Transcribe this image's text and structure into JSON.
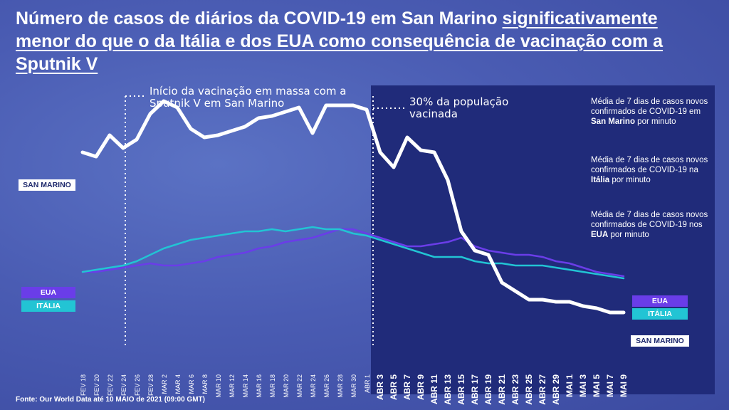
{
  "title": {
    "part1": "Número de casos de diários da COVID-19 em San Marino ",
    "part2": "significativamente menor do que o da Itália e dos EUA como consequência de vacinação com a Sputnik V"
  },
  "annotations": {
    "vaccination_start": "Início da vacinação em massa com a  Sputnik V em San Marino",
    "thirty_percent": "30% da população vacinada"
  },
  "legend": [
    {
      "name": "Média de 7 dias de casos novos confirmados de COVID-19 em ",
      "bold": "San Marino",
      "after": " por minuto",
      "color": "#ffffff"
    },
    {
      "name": "Média de 7 dias de casos novos confirmados de COVID-19 na ",
      "bold": "Itália",
      "after": " por minuto",
      "color": "#22c4d4"
    },
    {
      "name": "Média de 7 dias de casos novos confirmados de COVID-19 nos ",
      "bold": "EUA",
      "after": " por minuto",
      "color": "#6a3de8"
    }
  ],
  "tags": {
    "san_marino_left": "SAN MARINO",
    "eua_left": "EUA",
    "italia_left": "ITÁLIA",
    "eua_right": "EUA",
    "italia_right": "ITÁLIA",
    "san_marino_right": "SAN MARINO"
  },
  "source": "Fonte: Our World Data até 10 MAIO de 2021 (09:00 GMT)",
  "colors": {
    "san_marino": "#ffffff",
    "italia": "#22c4d4",
    "eua": "#6a3de8",
    "highlight_panel": "#202b7a"
  },
  "chart_data": {
    "type": "line",
    "categories": [
      "FEV 18",
      "FEV 20",
      "FEV 22",
      "FEV 24",
      "FEV 26",
      "FEV 28",
      "MAR 2",
      "MAR 4",
      "MAR 6",
      "MAR 8",
      "MAR 10",
      "MAR 12",
      "MAR 14",
      "MAR 16",
      "MAR 18",
      "MAR 20",
      "MAR 22",
      "MAR 24",
      "MAR 26",
      "MAR 28",
      "MAR 30",
      "ABR 1",
      "ABR 3",
      "ABR 5",
      "ABR 7",
      "ABR 9",
      "ABR 11",
      "ABR 13",
      "ABR 15",
      "ABR 17",
      "ABR 19",
      "ABR 21",
      "ABR 23",
      "ABR 25",
      "ABR 27",
      "ABR 29",
      "MAI 1",
      "MAI 3",
      "MAI 5",
      "MAI 7",
      "MAI 9"
    ],
    "series": [
      {
        "name": "SAN MARINO",
        "values": [
          10.2,
          10.0,
          11.0,
          10.4,
          10.8,
          12.0,
          12.6,
          12.3,
          11.3,
          10.9,
          11.0,
          11.2,
          11.4,
          11.8,
          11.9,
          12.1,
          12.3,
          11.1,
          12.4,
          12.4,
          12.4,
          12.2,
          10.2,
          9.5,
          10.9,
          10.3,
          10.2,
          8.9,
          6.5,
          5.6,
          5.4,
          4.1,
          3.7,
          3.3,
          3.3,
          3.2,
          3.2,
          3.0,
          2.9,
          2.7,
          2.7
        ]
      },
      {
        "name": "EUA",
        "values": [
          4.6,
          4.6,
          4.7,
          4.8,
          4.9,
          5.0,
          4.9,
          4.9,
          5.0,
          5.1,
          5.3,
          5.4,
          5.5,
          5.7,
          5.8,
          6.0,
          6.1,
          6.2,
          6.4,
          6.6,
          6.6,
          6.4,
          6.2,
          6.0,
          5.8,
          5.8,
          5.9,
          6.0,
          6.2,
          5.8,
          5.6,
          5.5,
          5.4,
          5.4,
          5.3,
          5.1,
          5.0,
          4.8,
          4.6,
          4.5,
          4.4
        ]
      },
      {
        "name": "ITÁLIA",
        "values": [
          4.6,
          4.7,
          4.8,
          4.9,
          5.1,
          5.4,
          5.7,
          5.9,
          6.1,
          6.2,
          6.3,
          6.4,
          6.5,
          6.5,
          6.6,
          6.5,
          6.6,
          6.7,
          6.6,
          6.6,
          6.4,
          6.3,
          6.1,
          5.9,
          5.7,
          5.5,
          5.3,
          5.3,
          5.3,
          5.1,
          5.0,
          5.0,
          4.9,
          4.9,
          4.9,
          4.8,
          4.7,
          4.6,
          4.5,
          4.4,
          4.3
        ]
      }
    ],
    "markers": [
      {
        "category": "FEV 24",
        "label": "Início da vacinação em massa com a  Sputnik V em San Marino"
      },
      {
        "category": "ABR 1",
        "label": "30% da população vacinada"
      }
    ]
  }
}
